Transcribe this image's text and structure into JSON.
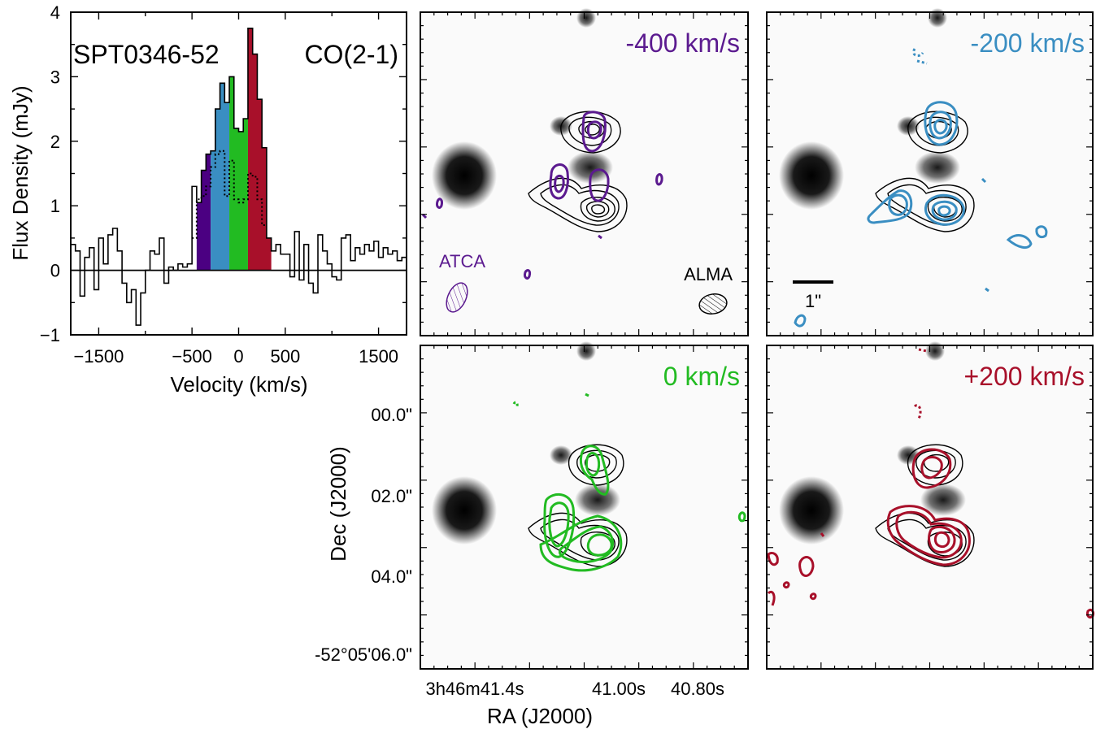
{
  "spectrum": {
    "source_label": "SPT0346-52",
    "line_label": "CO(2-1)",
    "xlabel": "Velocity (km/s)",
    "ylabel": "Flux Density (mJy)",
    "xtick_labels": [
      "−1500",
      "−500",
      "0",
      "500",
      "1500"
    ],
    "ytick_labels": [
      "−1",
      "0",
      "1",
      "2",
      "3",
      "4"
    ]
  },
  "chart_data": [
    {
      "type": "line",
      "step": true,
      "xlim": [
        -1800,
        1800
      ],
      "ylim": [
        -1,
        4
      ],
      "xticks": [
        -1500,
        -500,
        0,
        500,
        1500
      ],
      "yticks": [
        -1,
        0,
        1,
        2,
        3,
        4
      ],
      "bin_width": 50,
      "x": [
        -1775,
        -1725,
        -1675,
        -1625,
        -1575,
        -1525,
        -1475,
        -1425,
        -1375,
        -1325,
        -1275,
        -1225,
        -1175,
        -1125,
        -1075,
        -1025,
        -975,
        -925,
        -875,
        -825,
        -775,
        -725,
        -675,
        -625,
        -575,
        -525,
        -475,
        -425,
        -375,
        -325,
        -275,
        -225,
        -175,
        -125,
        -75,
        -25,
        25,
        75,
        125,
        175,
        225,
        275,
        325,
        375,
        425,
        475,
        525,
        575,
        625,
        675,
        725,
        775,
        825,
        875,
        925,
        975,
        1025,
        1075,
        1125,
        1175,
        1225,
        1275,
        1325,
        1375,
        1425,
        1475,
        1525,
        1575,
        1625,
        1675,
        1725,
        1775
      ],
      "series": [
        {
          "style": "solid",
          "values": [
            0.4,
            0.3,
            -0.4,
            0.2,
            0.35,
            -0.3,
            0.5,
            0.1,
            0.55,
            0.65,
            0.3,
            -0.2,
            -0.5,
            -0.3,
            -0.85,
            -0.35,
            0,
            0.3,
            0.25,
            0.5,
            -0.2,
            0.05,
            0.0,
            0.1,
            0.05,
            0.1,
            1.3,
            1.05,
            1.55,
            1.8,
            1.85,
            2.5,
            2.9,
            2.6,
            3.0,
            2.2,
            2.15,
            2.35,
            3.75,
            3.35,
            2.65,
            1.9,
            0.5,
            0.3,
            0.4,
            0.25,
            0.25,
            -0.1,
            0.6,
            -0.15,
            0.4,
            -0.2,
            -0.35,
            0.55,
            0.3,
            0.1,
            -0.1,
            -0.15,
            0.5,
            0.55,
            0.15,
            0.35,
            0.25,
            0.4,
            0.3,
            0.45,
            0.2,
            0.35,
            0.25,
            0.3,
            0.15,
            0.2
          ]
        },
        {
          "style": "dotted",
          "x": [
            -475,
            -425,
            -375,
            -325,
            -275,
            -225,
            -175,
            -125,
            -75,
            -25,
            25,
            75,
            125,
            175,
            225,
            275
          ],
          "values": [
            0.5,
            1.1,
            1.15,
            1.3,
            1.6,
            1.8,
            1.85,
            1.15,
            1.7,
            1.1,
            1.05,
            1.1,
            1.5,
            1.45,
            1.1,
            0.7
          ]
        }
      ],
      "channel_bands": [
        {
          "label": "-400 km/s",
          "x0": -450,
          "x1": -300,
          "color": "#4b0082"
        },
        {
          "label": "-200 km/s",
          "x0": -300,
          "x1": -100,
          "color": "#3a8ec2"
        },
        {
          "label": "0 km/s",
          "x0": -100,
          "x1": 100,
          "color": "#22bb22"
        },
        {
          "label": "+200 km/s",
          "x0": 100,
          "x1": 350,
          "color": "#a8102a"
        }
      ]
    }
  ],
  "maps": {
    "xlabel": "RA (J2000)",
    "ylabel": "Dec (J2000)",
    "ra_tick_labels": [
      "3h46m41.4s",
      "41.00s",
      "40.80s"
    ],
    "dec_tick_labels": [
      "00.0\"",
      "02.0\"",
      "04.0\"",
      "-52°05'06.0\""
    ],
    "scale_bar_label": "1\"",
    "beam_labels": {
      "atca": "ATCA",
      "alma": "ALMA"
    },
    "panels": [
      {
        "label": "-400 km/s",
        "color": "#5b1a8f"
      },
      {
        "label": "-200 km/s",
        "color": "#3a8ec2"
      },
      {
        "label": "0 km/s",
        "color": "#22bb22"
      },
      {
        "label": "+200 km/s",
        "color": "#a8102a"
      }
    ]
  }
}
